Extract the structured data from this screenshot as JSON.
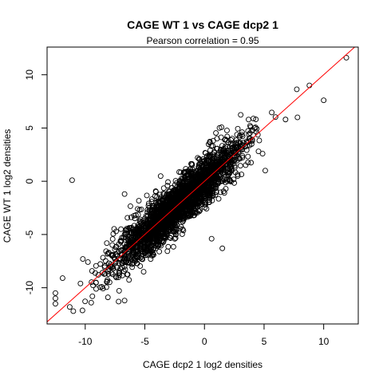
{
  "chart_data": {
    "type": "scatter",
    "title": "CAGE WT 1 vs CAGE dcp2 1",
    "subtitle": "Pearson correlation =  0.95",
    "xlabel": "CAGE dcp2 1 log2 densities",
    "ylabel": "CAGE WT 1 log2 densities",
    "xlim": [
      -13.2,
      12.9
    ],
    "ylim": [
      -13.4,
      12.6
    ],
    "x_ticks": [
      -10,
      -5,
      0,
      5,
      10
    ],
    "y_ticks": [
      -10,
      -5,
      0,
      5,
      10
    ],
    "grid": false,
    "legend": "none",
    "marker": "open-circle",
    "fit_line": {
      "slope": 1,
      "intercept": 0,
      "color": "#ff0000"
    },
    "cloud": {
      "count": 2600,
      "x_range": [
        -10.5,
        7.8
      ],
      "relationship": "y ≈ x",
      "noise_sd": 1.1
    },
    "points": [
      {
        "x": -11.1,
        "y": 0.1
      },
      {
        "x": 11.9,
        "y": 11.6
      },
      {
        "x": 8.8,
        "y": 9.0
      },
      {
        "x": -12.5,
        "y": -10.5
      },
      {
        "x": -12.5,
        "y": -11.0
      },
      {
        "x": -12.5,
        "y": -11.5
      },
      {
        "x": -11.3,
        "y": -11.8
      },
      {
        "x": -11.0,
        "y": -12.2
      },
      {
        "x": -11.9,
        "y": -9.1
      },
      {
        "x": -10.4,
        "y": -9.6
      },
      {
        "x": -10.2,
        "y": -7.3
      },
      {
        "x": -9.4,
        "y": -10.8
      },
      {
        "x": -9.5,
        "y": -11.4
      },
      {
        "x": -8.1,
        "y": -10.9
      },
      {
        "x": -7.2,
        "y": -11.3
      },
      {
        "x": -6.7,
        "y": -11.2
      },
      {
        "x": -5.1,
        "y": -8.5
      },
      {
        "x": -7.0,
        "y": -4.5
      },
      {
        "x": -6.7,
        "y": -1.2
      },
      {
        "x": -5.6,
        "y": -2.6
      },
      {
        "x": -4.7,
        "y": -2.3
      },
      {
        "x": 1.5,
        "y": -6.3
      },
      {
        "x": 0.6,
        "y": -5.4
      },
      {
        "x": 10.0,
        "y": 7.6
      },
      {
        "x": 7.8,
        "y": 6.0
      },
      {
        "x": 4.2,
        "y": 5.0
      },
      {
        "x": 5.1,
        "y": 1.0
      },
      {
        "x": 6.8,
        "y": 5.8
      }
    ]
  }
}
